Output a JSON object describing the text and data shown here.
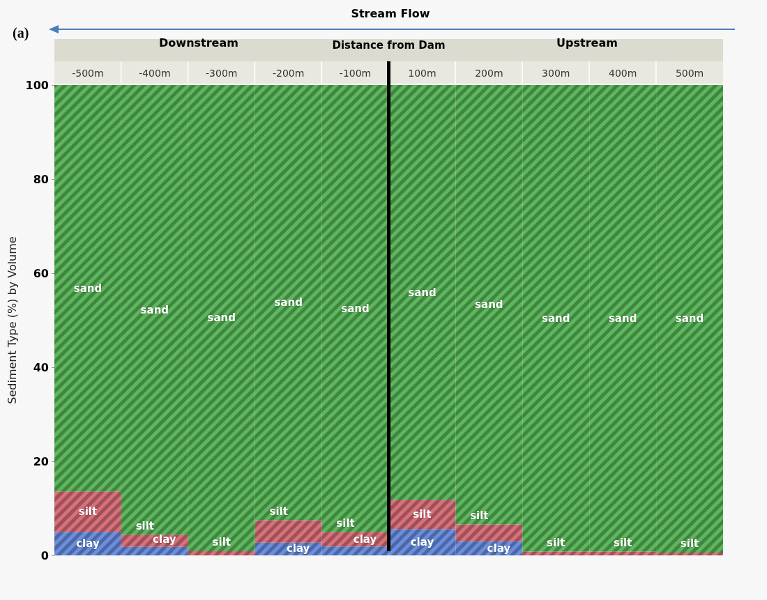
{
  "chart_data": {
    "type": "bar",
    "stacked": true,
    "xlabel": "Distance from Dam",
    "ylabel": "Sediment Type (%) by Volume",
    "categories": [
      "-500m",
      "-400m",
      "-300m",
      "-200m",
      "-100m",
      "100m",
      "200m",
      "300m",
      "400m",
      "500m"
    ],
    "series": [
      {
        "name": "clay",
        "color": "#6a8fe0",
        "values": [
          5.0,
          1.8,
          0,
          2.7,
          1.9,
          5.6,
          3.0,
          0,
          0,
          0
        ]
      },
      {
        "name": "silt",
        "color": "#d9707a",
        "values": [
          8.6,
          2.6,
          0.9,
          4.8,
          3.1,
          6.2,
          3.6,
          0.8,
          0.8,
          0.6
        ]
      },
      {
        "name": "sand",
        "color": "#5cb85c",
        "values": [
          86.4,
          95.6,
          99.1,
          92.5,
          95.0,
          88.2,
          93.4,
          99.2,
          99.2,
          99.4
        ]
      }
    ],
    "ylim": [
      0,
      100
    ],
    "yticks": [
      0,
      20,
      40,
      60,
      80,
      100
    ],
    "grid": false,
    "legend": false,
    "data_labels": false,
    "annotations": [
      "Stream Flow",
      "(a)",
      "Downstream",
      "Upstream"
    ]
  }
}
